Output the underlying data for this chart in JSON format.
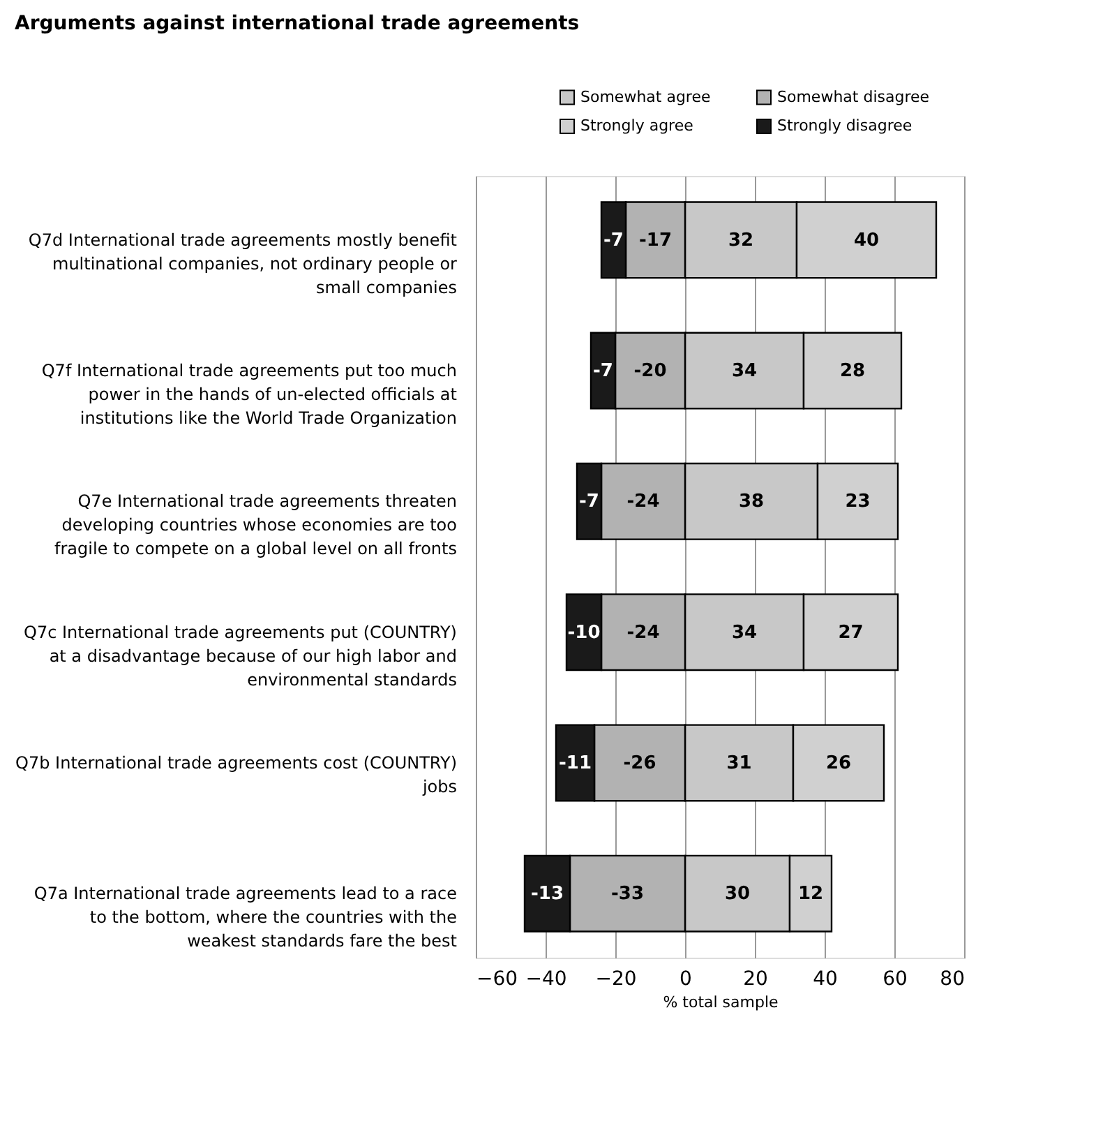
{
  "chart_data": {
    "type": "bar",
    "orientation": "horizontal",
    "stacked": true,
    "title": "Arguments against international trade agreements",
    "categories": [
      "Q7d International trade agreements mostly benefit multinational companies, not ordinary people or small companies",
      "Q7f International trade agreements put too much power in the hands of un-elected officials at institutions like the World Trade Organization",
      "Q7e International trade agreements threaten developing countries whose economies are too fragile to compete on a global level on all fronts",
      "Q7c International trade agreements put (COUNTRY) at a disadvantage because of our high labor and environmental standards",
      "Q7b International trade agreements cost (COUNTRY) jobs",
      "Q7a International trade agreements lead to a race to the bottom, where the countries with the weakest standards fare the best"
    ],
    "series": [
      {
        "name": "Somewhat agree",
        "color": "#c8c8c8",
        "values": [
          32,
          34,
          38,
          34,
          31,
          30
        ]
      },
      {
        "name": "Strongly agree",
        "color": "#d0d0d0",
        "values": [
          40,
          28,
          23,
          27,
          26,
          12
        ]
      },
      {
        "name": "Somewhat disagree",
        "color": "#b2b2b2",
        "values": [
          -17,
          -20,
          -24,
          -24,
          -26,
          -33
        ]
      },
      {
        "name": "Strongly disagree",
        "color": "#1a1a1a",
        "values": [
          -7,
          -7,
          -7,
          -10,
          -11,
          -13
        ]
      }
    ],
    "xlim": [
      -60,
      80
    ],
    "xticks": [
      -60,
      -40,
      -20,
      0,
      20,
      40,
      60,
      80
    ],
    "xlabel": "% total sample",
    "grid": "x",
    "legend": "top right",
    "data_labels": true
  }
}
